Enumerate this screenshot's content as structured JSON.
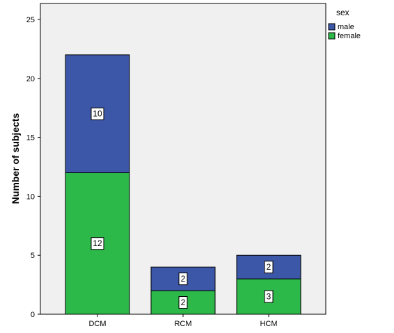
{
  "chart_data": {
    "type": "bar",
    "stacked": true,
    "categories": [
      "DCM",
      "RCM",
      "HCM"
    ],
    "series": [
      {
        "name": "female",
        "values": [
          12,
          2,
          3
        ],
        "color": "#2db84a"
      },
      {
        "name": "male",
        "values": [
          10,
          2,
          2
        ],
        "color": "#3d57a8"
      }
    ],
    "title": "",
    "xlabel": "",
    "ylabel": "Number of subjects",
    "ylim": [
      0,
      25
    ],
    "yticks": [
      0,
      5,
      10,
      15,
      20,
      25
    ],
    "legend": {
      "title": "sex",
      "entries": [
        {
          "name": "male",
          "color": "#3d57a8"
        },
        {
          "name": "female",
          "color": "#2db84a"
        }
      ],
      "placement": "top-right"
    },
    "plot_background": "#f0f0f0",
    "grid": false
  }
}
